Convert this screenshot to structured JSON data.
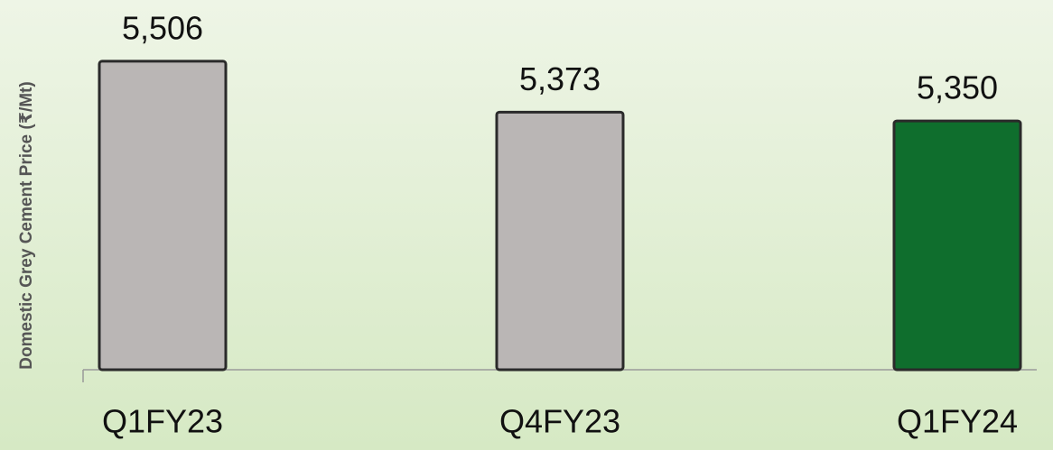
{
  "chart_data": {
    "type": "bar",
    "y_axis_label": "Domestic Grey Cement Price (₹/Mt)",
    "categories": [
      "Q1FY23",
      "Q4FY23",
      "Q1FY24"
    ],
    "values": [
      5506,
      5373,
      5350
    ],
    "value_labels": [
      "5,506",
      "5,373",
      "5,350"
    ],
    "colors": [
      "#bab6b5",
      "#bab6b5",
      "#0f6e2d"
    ],
    "ylim": [
      4700,
      5600
    ]
  }
}
